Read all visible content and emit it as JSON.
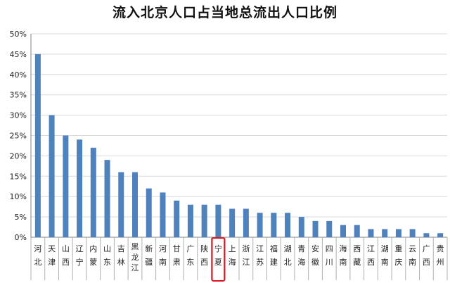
{
  "chart_data": {
    "type": "bar",
    "title": "流入北京人口占当地总流出人口比例",
    "xlabel": "",
    "ylabel": "",
    "ylim": [
      0,
      50
    ],
    "yticks": [
      "0%",
      "5%",
      "10%",
      "15%",
      "20%",
      "25%",
      "30%",
      "35%",
      "40%",
      "45%",
      "50%"
    ],
    "grid": true,
    "legend": "none",
    "bar_color": "#4f81bd",
    "highlight_color": "#e0141e",
    "highlight_category": "宁夏",
    "categories": [
      "河北",
      "天津",
      "山西",
      "辽宁",
      "内蒙",
      "山东",
      "吉林",
      "黑龙江",
      "新疆",
      "河南",
      "甘肃",
      "广东",
      "陕西",
      "宁夏",
      "上海",
      "浙江",
      "江苏",
      "福建",
      "湖北",
      "青海",
      "安徽",
      "四川",
      "海南",
      "西藏",
      "江西",
      "湖南",
      "重庆",
      "云南",
      "广西",
      "贵州"
    ],
    "values": [
      45,
      30,
      25,
      24,
      22,
      19,
      16,
      16,
      12,
      11,
      9,
      8,
      8,
      8,
      7,
      7,
      6,
      6,
      6,
      5,
      4,
      4,
      3,
      3,
      2,
      2,
      2,
      2,
      1,
      1
    ]
  }
}
